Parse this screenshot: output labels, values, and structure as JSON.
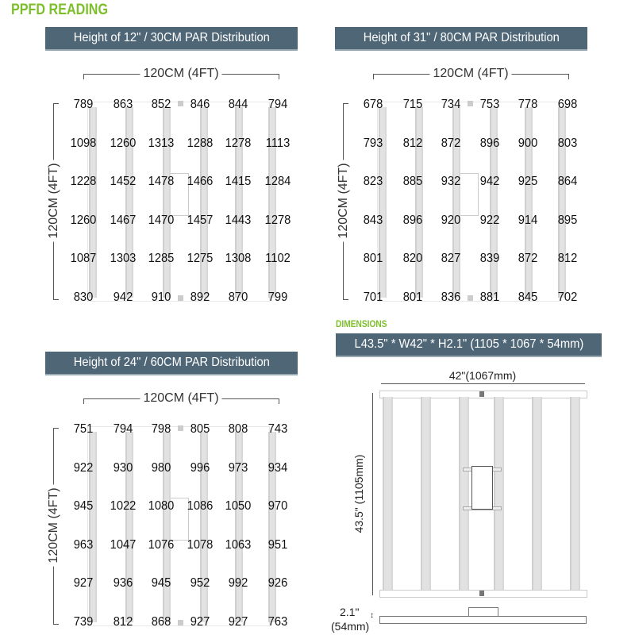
{
  "page_title": "PPFD READING",
  "panels": [
    {
      "header": "Height of  12\" / 30CM PAR  Distribution",
      "width_label": "120CM (4FT)",
      "height_label": "120CM (4FT)",
      "grid": [
        [
          789,
          863,
          852,
          846,
          844,
          794
        ],
        [
          1098,
          1260,
          1313,
          1288,
          1278,
          1113
        ],
        [
          1228,
          1452,
          1478,
          1466,
          1415,
          1284
        ],
        [
          1260,
          1467,
          1470,
          1457,
          1443,
          1278
        ],
        [
          1087,
          1303,
          1285,
          1275,
          1308,
          1102
        ],
        [
          830,
          942,
          910,
          892,
          870,
          799
        ]
      ]
    },
    {
      "header": "Height of  31\" / 80CM PAR  Distribution",
      "width_label": "120CM (4FT)",
      "height_label": "120CM (4FT)",
      "grid": [
        [
          678,
          715,
          734,
          753,
          778,
          698
        ],
        [
          793,
          812,
          872,
          896,
          900,
          803
        ],
        [
          823,
          885,
          932,
          942,
          925,
          864
        ],
        [
          843,
          896,
          920,
          922,
          914,
          895
        ],
        [
          801,
          820,
          827,
          839,
          872,
          812
        ],
        [
          701,
          801,
          836,
          881,
          845,
          702
        ]
      ]
    },
    {
      "header": "Height of  24\" / 60CM PAR  Distribution",
      "width_label": "120CM (4FT)",
      "height_label": "120CM (4FT)",
      "grid": [
        [
          751,
          794,
          798,
          805,
          808,
          743
        ],
        [
          922,
          930,
          980,
          996,
          973,
          934
        ],
        [
          945,
          1022,
          1080,
          1086,
          1050,
          970
        ],
        [
          963,
          1047,
          1076,
          1078,
          1063,
          951
        ],
        [
          927,
          936,
          945,
          952,
          992,
          926
        ],
        [
          739,
          812,
          868,
          927,
          927,
          763
        ]
      ]
    }
  ],
  "dimensions": {
    "title": "DIMENSIONS",
    "header": "L43.5\" * W42\" * H2.1\" (1105 * 1067 * 54mm)",
    "width_label": "42\"(1067mm)",
    "length_label": "43.5\" (1105mm)",
    "height_label_1": "2.1\"",
    "height_label_2": "(54mm)"
  },
  "colors": {
    "accent": "#7cbf2a",
    "header_bg": "#4f6677"
  }
}
